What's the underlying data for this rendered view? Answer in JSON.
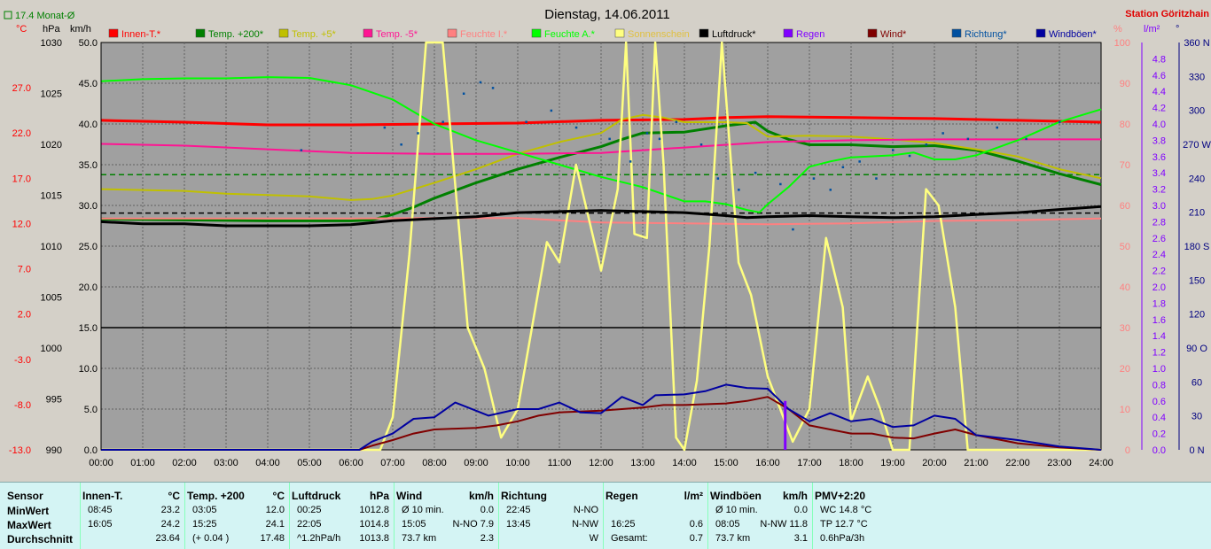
{
  "title": "Dienstag, 14.06.2011",
  "station": "Station Göritzhain",
  "monthly_avg": "17.4 Monat-Ø",
  "axis_units": {
    "temp": "°C",
    "pressure": "hPa",
    "wind": "km/h",
    "percent": "%",
    "rain": "l/m²",
    "direction": "°"
  },
  "legend": [
    {
      "label": "Innen-T.*",
      "color": "#ff0000"
    },
    {
      "label": "Temp. +200*",
      "color": "#008000"
    },
    {
      "label": "Temp. +5*",
      "color": "#c0c000"
    },
    {
      "label": "Temp. -5*",
      "color": "#ff1493"
    },
    {
      "label": "Feuchte I.*",
      "color": "#ff8080"
    },
    {
      "label": "Feuchte A.*",
      "color": "#00ff00"
    },
    {
      "label": "Sonnenschein",
      "color": "#ffff80"
    },
    {
      "label": "Luftdruck*",
      "color": "#000000"
    },
    {
      "label": "Regen",
      "color": "#8000ff"
    },
    {
      "label": "Wind*",
      "color": "#800000"
    },
    {
      "label": "Richtung*",
      "color": "#0050a0"
    },
    {
      "label": "Windböen*",
      "color": "#0000a0"
    }
  ],
  "chart_data": {
    "type": "line",
    "title": "Dienstag, 14.06.2011",
    "x_ticks": [
      "00:00",
      "01:00",
      "02:00",
      "03:00",
      "04:00",
      "05:00",
      "06:00",
      "07:00",
      "08:00",
      "09:00",
      "10:00",
      "11:00",
      "12:00",
      "13:00",
      "14:00",
      "15:00",
      "16:00",
      "17:00",
      "18:00",
      "19:00",
      "20:00",
      "21:00",
      "22:00",
      "23:00",
      "24:00"
    ],
    "axes": {
      "temp_c": {
        "ticks": [
          "27.0",
          "22.0",
          "17.0",
          "12.0",
          "7.0",
          "2.0",
          "-3.0",
          "-8.0",
          "-13.0"
        ],
        "range": [
          -13.0,
          32.0
        ]
      },
      "pressure_hpa": {
        "ticks": [
          "1030",
          "1025",
          "1020",
          "1015",
          "1010",
          "1005",
          "1000",
          "995",
          "990"
        ],
        "range": [
          990,
          1030
        ]
      },
      "wind_kmh": {
        "ticks": [
          "50.0",
          "45.0",
          "40.0",
          "35.0",
          "30.0",
          "25.0",
          "20.0",
          "15.0",
          "10.0",
          "5.0",
          "0.0"
        ],
        "range": [
          0,
          50
        ]
      },
      "percent": {
        "ticks": [
          "100",
          "90",
          "80",
          "70",
          "60",
          "50",
          "40",
          "30",
          "20",
          "10",
          "0"
        ],
        "range": [
          0,
          100
        ]
      },
      "rain_lm2": {
        "ticks": [
          "4.8",
          "4.6",
          "4.4",
          "4.2",
          "4.0",
          "3.8",
          "3.6",
          "3.4",
          "3.2",
          "3.0",
          "2.8",
          "2.6",
          "2.4",
          "2.2",
          "2.0",
          "1.8",
          "1.6",
          "1.4",
          "1.2",
          "1.0",
          "0.8",
          "0.6",
          "0.4",
          "0.2",
          "0.0"
        ],
        "range": [
          0,
          5.0
        ]
      },
      "direction_deg": {
        "ticks": [
          "360 N",
          "330",
          "300",
          "270 W",
          "240",
          "210",
          "180 S",
          "150",
          "120",
          "90 O",
          "60",
          "30",
          "0 N"
        ],
        "range": [
          0,
          360
        ]
      }
    },
    "series": [
      {
        "name": "Innen-T.*",
        "axis": "temp_c",
        "color": "#ff0000",
        "x": [
          0,
          2,
          4,
          6,
          8,
          10,
          12,
          14,
          14.5,
          15,
          16,
          18,
          20,
          22,
          24
        ],
        "y": [
          23.4,
          23.2,
          22.9,
          22.9,
          23.0,
          23.1,
          23.4,
          23.5,
          23.6,
          23.7,
          23.8,
          23.7,
          23.6,
          23.4,
          23.2
        ]
      },
      {
        "name": "Temp. +200*",
        "axis": "temp_c",
        "color": "#008000",
        "x": [
          0,
          2,
          4,
          6,
          6.5,
          7,
          7.5,
          8,
          9,
          10,
          11,
          12,
          12.5,
          13,
          14,
          15,
          15.7,
          16,
          16.5,
          17,
          18,
          19,
          20,
          21,
          22,
          23,
          24
        ],
        "y": [
          12.5,
          12.4,
          12.3,
          12.3,
          12.4,
          13.0,
          13.8,
          14.8,
          16.5,
          18.0,
          19.3,
          20.5,
          21.3,
          22.0,
          22.1,
          22.8,
          23.2,
          22.2,
          21.3,
          20.7,
          20.7,
          20.5,
          20.6,
          20.1,
          18.9,
          17.5,
          16.3
        ]
      },
      {
        "name": "Temp. +5*",
        "axis": "temp_c",
        "color": "#c0c000",
        "x": [
          0,
          2,
          3,
          5,
          6,
          6.5,
          7,
          8,
          9,
          10,
          11,
          12,
          12.5,
          13,
          13.5,
          14,
          15,
          15.5,
          16,
          17,
          18,
          19,
          20,
          21,
          22,
          23,
          24
        ],
        "y": [
          15.8,
          15.6,
          15.3,
          15.0,
          14.6,
          14.7,
          15.1,
          16.5,
          18.0,
          19.7,
          21.0,
          22.0,
          23.5,
          24.0,
          23.7,
          23.2,
          23.2,
          23.1,
          21.6,
          21.7,
          21.6,
          21.3,
          20.9,
          20.2,
          19.4,
          18.0,
          17.0
        ]
      },
      {
        "name": "Temp. -5*",
        "axis": "temp_c",
        "color": "#ff1493",
        "x": [
          0,
          2,
          4,
          6,
          8,
          10,
          12,
          14,
          16,
          18,
          20,
          22,
          24
        ],
        "y": [
          20.8,
          20.6,
          20.2,
          19.8,
          19.7,
          19.7,
          19.8,
          20.4,
          21.0,
          21.2,
          21.3,
          21.3,
          21.3
        ]
      },
      {
        "name": "Feuchte I.*",
        "axis": "percent",
        "color": "#ff8080",
        "x": [
          0,
          2,
          4,
          6,
          8,
          10,
          12,
          14,
          16,
          18,
          20,
          22,
          24
        ],
        "y": [
          56.8,
          56.8,
          56.8,
          56.8,
          56.9,
          56.9,
          55.8,
          55.6,
          55.4,
          55.6,
          56.2,
          56.4,
          56.8
        ]
      },
      {
        "name": "Feuchte A.*",
        "axis": "percent",
        "color": "#00ff00",
        "x": [
          0,
          1,
          2,
          3,
          4,
          5,
          6,
          7,
          8,
          9,
          10,
          11,
          12,
          13,
          14,
          14.5,
          15,
          15.5,
          15.8,
          16,
          16.5,
          17,
          17.5,
          18,
          19,
          19.5,
          20,
          20.5,
          21,
          22,
          23,
          24
        ],
        "y": [
          90.5,
          91.0,
          91.2,
          91.2,
          91.5,
          91.3,
          89.5,
          86.0,
          80.0,
          76.0,
          73.0,
          70.0,
          67.0,
          64.5,
          61.0,
          61.0,
          60.3,
          58.9,
          58.3,
          60.3,
          64.5,
          69.5,
          70.8,
          71.8,
          72.3,
          73.0,
          71.3,
          71.3,
          72.3,
          76.0,
          80.5,
          83.6
        ]
      },
      {
        "name": "Sonnenschein",
        "axis": "percent",
        "color": "#ffff80",
        "x": [
          0,
          6.7,
          7,
          7.4,
          7.8,
          8.2,
          8.5,
          8.8,
          9.2,
          9.6,
          10,
          10.7,
          11,
          11.4,
          12,
          12.4,
          12.6,
          12.8,
          13.1,
          13.3,
          13.5,
          13.8,
          14,
          14.3,
          14.6,
          14.9,
          15.3,
          15.6,
          16,
          16.3,
          16.6,
          17,
          17.4,
          17.8,
          18,
          18.4,
          18.7,
          19,
          19.4,
          19.8,
          20.1,
          20.5,
          20.8,
          24
        ],
        "y": [
          0,
          0,
          8,
          48,
          100,
          100,
          65,
          30,
          20,
          3,
          10,
          51,
          46,
          70,
          44,
          64,
          100,
          53,
          52,
          100,
          70,
          3,
          0,
          17,
          50,
          100,
          46,
          38,
          18,
          10,
          2,
          10,
          52,
          35,
          7,
          18,
          10,
          0,
          0,
          64,
          60,
          35,
          0,
          0
        ]
      },
      {
        "name": "Luftdruck*",
        "axis": "pressure_hpa",
        "color": "#000000",
        "x": [
          0,
          1,
          2,
          3,
          4,
          5,
          6,
          7,
          8,
          9,
          10,
          11,
          12,
          13,
          14,
          15,
          15.5,
          16,
          17,
          18,
          19,
          20,
          21,
          22,
          23,
          24
        ],
        "y": [
          1012.4,
          1012.2,
          1012.2,
          1012.0,
          1012.0,
          1012.0,
          1012.1,
          1012.5,
          1012.7,
          1012.9,
          1013.3,
          1013.4,
          1013.5,
          1013.4,
          1013.3,
          1013.0,
          1012.8,
          1012.9,
          1013.0,
          1012.9,
          1012.8,
          1012.9,
          1013.1,
          1013.3,
          1013.6,
          1013.9
        ]
      },
      {
        "name": "Wind*",
        "axis": "wind_kmh",
        "color": "#800000",
        "x": [
          0,
          6.2,
          6.5,
          7,
          7.5,
          8,
          8.5,
          9,
          9.5,
          10,
          10.5,
          11,
          11.5,
          12,
          12.5,
          13,
          13.5,
          14,
          14.5,
          15,
          15.5,
          16,
          16.5,
          17,
          17.5,
          18,
          18.5,
          19,
          19.5,
          20,
          20.5,
          21,
          22,
          23,
          24
        ],
        "y": [
          0,
          0,
          0.5,
          1.2,
          2.0,
          2.5,
          2.6,
          2.7,
          3.0,
          3.5,
          4.2,
          4.6,
          4.7,
          4.8,
          5.0,
          5.2,
          5.5,
          5.5,
          5.6,
          5.7,
          6.0,
          6.5,
          5.0,
          3.0,
          2.5,
          2.0,
          2.0,
          1.5,
          1.4,
          2.0,
          2.5,
          1.8,
          0.8,
          0.3,
          0
        ]
      },
      {
        "name": "Windböen*",
        "axis": "wind_kmh",
        "color": "#0000a0",
        "x": [
          0,
          6.2,
          6.5,
          7,
          7.5,
          8,
          8.5,
          9,
          9.3,
          10,
          10.5,
          11,
          11.5,
          12,
          12.5,
          13,
          13.3,
          14,
          14.5,
          15,
          15.5,
          16,
          16.5,
          17,
          17.5,
          18,
          18.5,
          19,
          19.5,
          20,
          20.5,
          21,
          22,
          23,
          24
        ],
        "y": [
          0,
          0,
          1.0,
          2.0,
          3.8,
          4.0,
          5.8,
          4.8,
          4.2,
          5.0,
          5.0,
          5.8,
          4.6,
          4.5,
          6.5,
          5.5,
          6.7,
          6.8,
          7.2,
          8.0,
          7.6,
          7.5,
          5.0,
          3.5,
          4.5,
          3.5,
          3.8,
          2.8,
          3.0,
          4.2,
          3.8,
          1.8,
          1.2,
          0.4,
          0
        ]
      },
      {
        "name": "Regen",
        "axis": "rain_lm2",
        "color": "#8000ff",
        "x": [
          16.42,
          16.42
        ],
        "y": [
          0.0,
          0.6
        ]
      }
    ],
    "direction_points": {
      "axis": "direction_deg",
      "color": "#0050a0",
      "x": [
        4.8,
        6.8,
        7.2,
        7.6,
        8.2,
        8.7,
        9.1,
        9.4,
        10.2,
        10.8,
        11.4,
        12.2,
        12.7,
        13.1,
        13.4,
        13.8,
        14.4,
        14.8,
        15.3,
        15.7,
        16.3,
        16.6,
        17.1,
        17.5,
        17.8,
        18.2,
        18.6,
        19.0,
        19.4,
        19.8,
        20.2,
        20.8,
        21.5,
        22.2,
        23.0
      ],
      "y": [
        265,
        285,
        270,
        280,
        290,
        315,
        325,
        320,
        290,
        300,
        285,
        275,
        255,
        280,
        275,
        290,
        270,
        240,
        230,
        245,
        235,
        195,
        240,
        230,
        250,
        255,
        240,
        265,
        260,
        270,
        280,
        275,
        285,
        275,
        290
      ]
    },
    "reference_lines": [
      {
        "axis": "wind_kmh",
        "value": 15.0,
        "style": "solid",
        "color": "#000000"
      },
      {
        "axis": "temp_c",
        "value": 17.4,
        "style": "dashed",
        "color": "#008000"
      },
      {
        "axis": "pressure_hpa",
        "value": 1013.25,
        "style": "dashed",
        "color": "#000000"
      }
    ],
    "grid": true
  },
  "stats": {
    "columns": [
      {
        "header": "Sensor",
        "unit": "",
        "rows": [
          {
            "a": "MinWert"
          },
          {
            "a": "MaxWert"
          },
          {
            "a": "Durchschnitt"
          }
        ]
      },
      {
        "header": "Innen-T.",
        "unit": "°C",
        "rows": [
          {
            "a": "08:45",
            "b": "23.2"
          },
          {
            "a": "16:05",
            "b": "24.2"
          },
          {
            "a": "",
            "b": "23.64"
          }
        ]
      },
      {
        "header": "Temp. +200",
        "unit": "°C",
        "rows": [
          {
            "a": "03:05",
            "b": "12.0"
          },
          {
            "a": "15:25",
            "b": "24.1"
          },
          {
            "a": "(+ 0.04 )",
            "b": "17.48"
          }
        ]
      },
      {
        "header": "Luftdruck",
        "unit": "hPa",
        "rows": [
          {
            "a": "00:25",
            "b": "1012.8"
          },
          {
            "a": "22:05",
            "b": "1014.8"
          },
          {
            "a": "^1.2hPa/h",
            "b": "1013.8"
          }
        ]
      },
      {
        "header": "Wind",
        "unit": "km/h",
        "rows": [
          {
            "a": "Ø 10 min.",
            "b": "0.0"
          },
          {
            "a": "15:05",
            "b": "N-NO 7.9"
          },
          {
            "a": "73.7 km",
            "b": "2.3"
          }
        ]
      },
      {
        "header": "Richtung",
        "unit": "",
        "rows": [
          {
            "a": "22:45",
            "b": "N-NO"
          },
          {
            "a": "13:45",
            "b": "N-NW"
          },
          {
            "a": "",
            "b": "W"
          }
        ]
      },
      {
        "header": "Regen",
        "unit": "l/m²",
        "rows": [
          {
            "a": "",
            "b": ""
          },
          {
            "a": "16:25",
            "b": "0.6"
          },
          {
            "a": "Gesamt:",
            "b": "0.7"
          }
        ]
      },
      {
        "header": "Windböen",
        "unit": "km/h",
        "rows": [
          {
            "a": "Ø 10 min.",
            "b": "0.0"
          },
          {
            "a": "08:05",
            "b": "N-NW 11.8"
          },
          {
            "a": "73.7 km",
            "b": "3.1"
          }
        ]
      },
      {
        "header": "PMV+2:20",
        "unit": "",
        "rows": [
          {
            "a": "WC 14.8 °C"
          },
          {
            "a": "TP 12.7 °C"
          },
          {
            "a": "0.6hPa/3h"
          }
        ]
      }
    ]
  }
}
